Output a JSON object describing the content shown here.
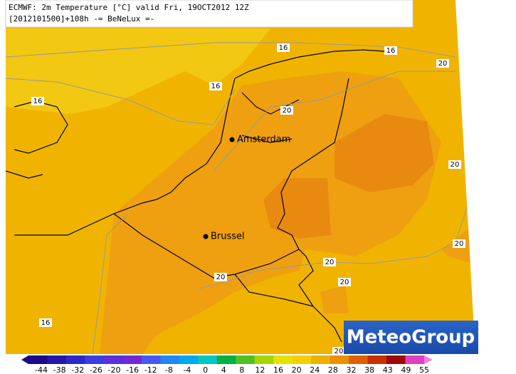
{
  "header": {
    "line1": "ECMWF: 2m Temperature [°C] valid Fri, 19OCT2012 12Z",
    "line2": "[2012101500]+108h -= BeNeLux =-"
  },
  "cities": [
    "Amsterdam",
    "Brussel"
  ],
  "contour_labels": [
    "16",
    "16",
    "16",
    "16",
    "16",
    "20",
    "20",
    "20",
    "20",
    "20",
    "20",
    "20",
    "20"
  ],
  "logo": "MeteoGroup",
  "colorbar": {
    "ticks": [
      -44,
      -38,
      -32,
      -26,
      -20,
      -16,
      -12,
      -8,
      -4,
      0,
      4,
      8,
      12,
      16,
      20,
      24,
      28,
      32,
      38,
      43,
      49,
      55
    ],
    "colors": [
      "#1c0a8a",
      "#2418a8",
      "#2a2ac8",
      "#3c3ce0",
      "#5a30d8",
      "#7028d8",
      "#4a58f0",
      "#2088f0",
      "#00a8f0",
      "#00c8c0",
      "#00b040",
      "#50c020",
      "#a8d400",
      "#e4e400",
      "#f5d000",
      "#f0b000",
      "#ec9000",
      "#e06000",
      "#c83000",
      "#a00808",
      "#e040c0"
    ]
  }
}
